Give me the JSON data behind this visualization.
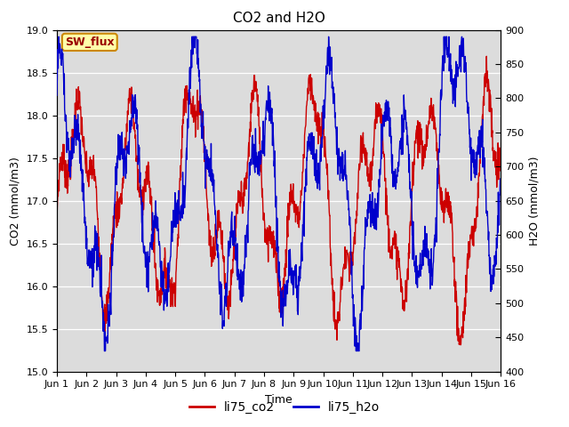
{
  "title": "CO2 and H2O",
  "xlabel": "Time",
  "ylabel_left": "CO2 (mmol/m3)",
  "ylabel_right": "H2O (mmol/m3)",
  "ylim_left": [
    15.0,
    19.0
  ],
  "ylim_right": [
    400,
    900
  ],
  "yticks_left": [
    15.0,
    15.5,
    16.0,
    16.5,
    17.0,
    17.5,
    18.0,
    18.5,
    19.0
  ],
  "yticks_right": [
    400,
    450,
    500,
    550,
    600,
    650,
    700,
    750,
    800,
    850,
    900
  ],
  "xtick_labels": [
    "Jun 1",
    "Jun 2",
    "Jun 3",
    "Jun 4",
    "Jun 5",
    "Jun 6",
    "Jun 7",
    "Jun 8",
    "Jun 9",
    "Jun 10",
    "Jun 11",
    "Jun 12",
    "Jun 13",
    "Jun 14",
    "Jun 15",
    "Jun 16"
  ],
  "co2_color": "#cc0000",
  "h2o_color": "#0000cc",
  "bg_color": "#dcdcdc",
  "annotation_text": "SW_flux",
  "annotation_bg": "#ffffaa",
  "annotation_border": "#cc8800",
  "legend_co2": "li75_co2",
  "legend_h2o": "li75_h2o",
  "linewidth": 1.0
}
